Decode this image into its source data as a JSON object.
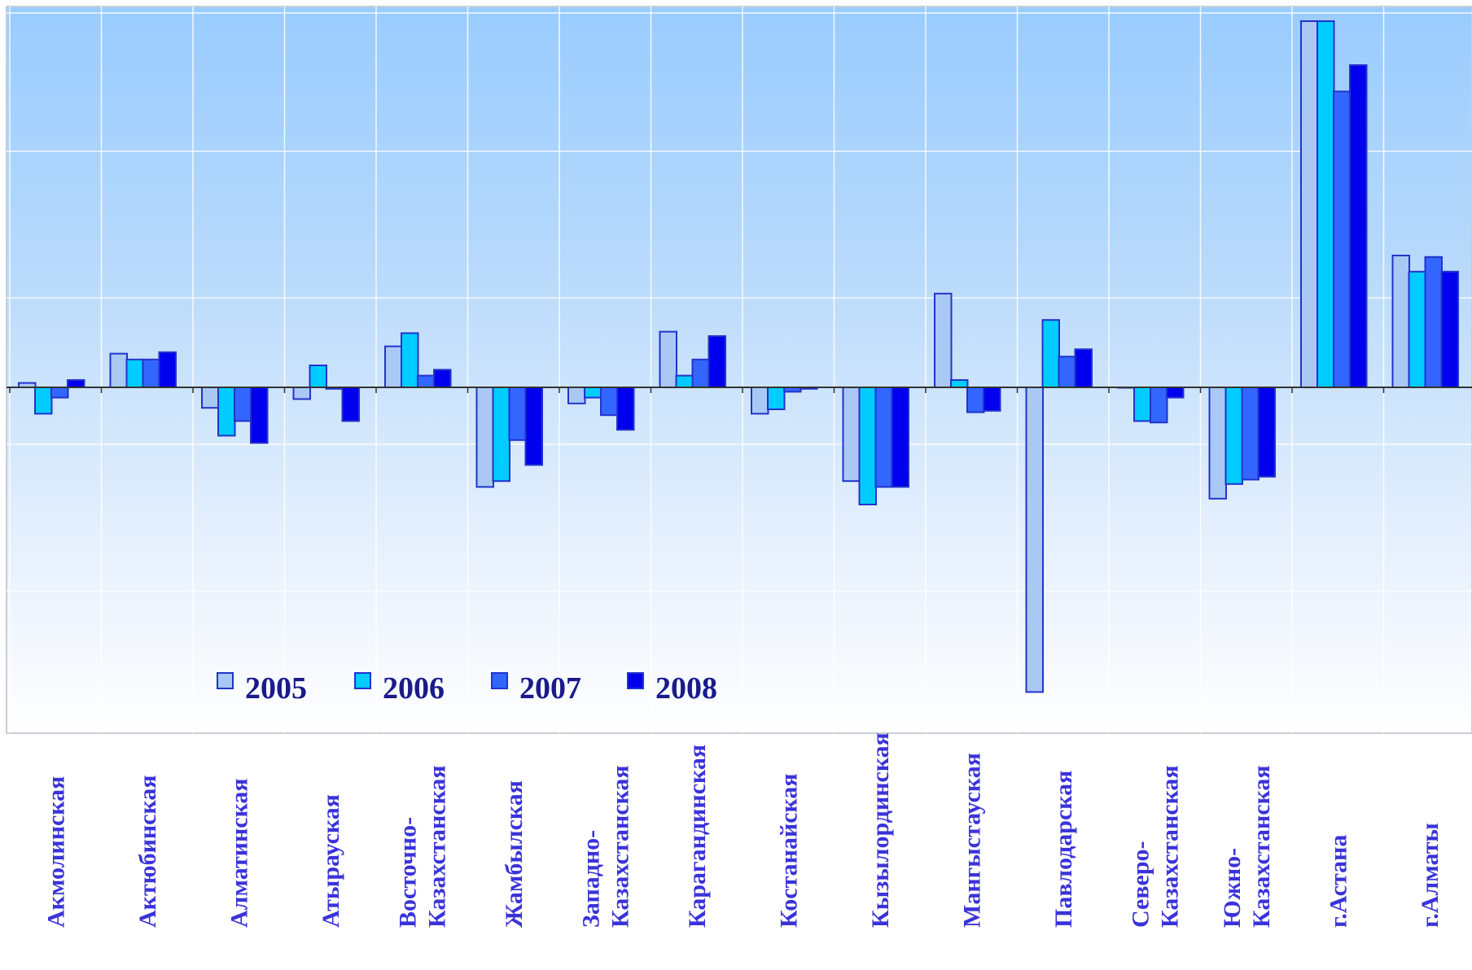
{
  "chart_data": {
    "type": "bar",
    "title": "",
    "xlabel": "",
    "ylabel": "",
    "grid": true,
    "legend_position": "bottom-left (inside plot)",
    "categories": [
      "Акмолинская",
      "Актюбинская",
      "Алматинская",
      "Атырауская",
      "Восточно-Казахстанская",
      "Жамбылская",
      "Западно-Казахстанская",
      "Карагандинская",
      "Костанайская",
      "Кызылординская",
      "Мангыстауская",
      "Павлодарская",
      "Северо-Казахстанская",
      "Южно-Казахстанская",
      "г.Астана",
      "г.Алматы"
    ],
    "category_label_lines": [
      [
        "Акмолинская"
      ],
      [
        "Актюбинская"
      ],
      [
        "Алматинская"
      ],
      [
        "Атырауская"
      ],
      [
        "Восточно-",
        "Казахстанская"
      ],
      [
        "Жамбылская"
      ],
      [
        "Западно-",
        "Казахстанская"
      ],
      [
        "Карагандинская"
      ],
      [
        "Костанайская"
      ],
      [
        "Кызылординская"
      ],
      [
        "Мангыстауская"
      ],
      [
        "Павлодарская"
      ],
      [
        "Северо-",
        "Казахстанская"
      ],
      [
        "Южно-",
        "Казахстанская"
      ],
      [
        "г.Астана"
      ],
      [
        "г.Алматы"
      ]
    ],
    "value_unit_note": "No y-axis tick values shown; values are relative heights (positive above zero line).",
    "ylim": [
      -105,
      125
    ],
    "series": [
      {
        "name": "2005",
        "color": "#a9c9f4",
        "values": [
          1.5,
          11.5,
          -7,
          -4,
          14,
          -34,
          -5.5,
          19,
          -9,
          -32,
          32,
          -104,
          0,
          -38,
          125,
          45
        ]
      },
      {
        "name": "2006",
        "color": "#00ccff",
        "values": [
          -9,
          9.5,
          -16.5,
          7.5,
          18.5,
          -32,
          -3.5,
          4,
          -7.5,
          -40,
          2.5,
          23,
          -11.5,
          -33,
          125,
          39.5
        ]
      },
      {
        "name": "2007",
        "color": "#3366ff",
        "values": [
          -3.5,
          9.5,
          -11.5,
          -0.5,
          4,
          -18,
          -9.5,
          9.5,
          -1.5,
          -34,
          -8.5,
          10.5,
          -12,
          -31.5,
          101,
          44.5
        ]
      },
      {
        "name": "2008",
        "color": "#0000ee",
        "values": [
          2.5,
          12,
          -19,
          -11.5,
          6,
          -26.5,
          -14.5,
          17.5,
          -0.5,
          -34,
          -8,
          13,
          -3.5,
          -30.5,
          110,
          39.5
        ]
      }
    ]
  }
}
